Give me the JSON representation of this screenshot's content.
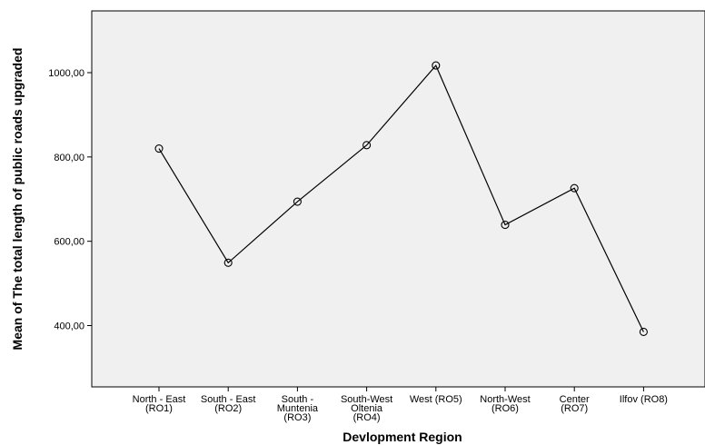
{
  "chart_data": {
    "type": "line",
    "categories": [
      [
        "North - East",
        "(RO1)"
      ],
      [
        "South - East",
        "(RO2)"
      ],
      [
        "South -",
        "Muntenia",
        "(RO3)"
      ],
      [
        "South-West",
        "Oltenia",
        "(RO4)"
      ],
      [
        "West (RO5)"
      ],
      [
        "North-West",
        "(RO6)"
      ],
      [
        "Center",
        "(RO7)"
      ],
      [
        "Ilfov (RO8)"
      ]
    ],
    "values": [
      820,
      549,
      694,
      828,
      1017,
      639,
      726,
      385
    ],
    "xlabel": "Devlopment Region",
    "ylabel": "Mean of The total length  of public roads upgraded",
    "ylim": [
      270,
      1140
    ],
    "yticks": [
      400,
      600,
      800,
      1000
    ],
    "ytick_labels": [
      "400,00",
      "600,00",
      "800,00",
      "1000,00"
    ],
    "grid": false,
    "colors": {
      "plot_background": "#f0f0f0",
      "line": "#000000"
    }
  }
}
